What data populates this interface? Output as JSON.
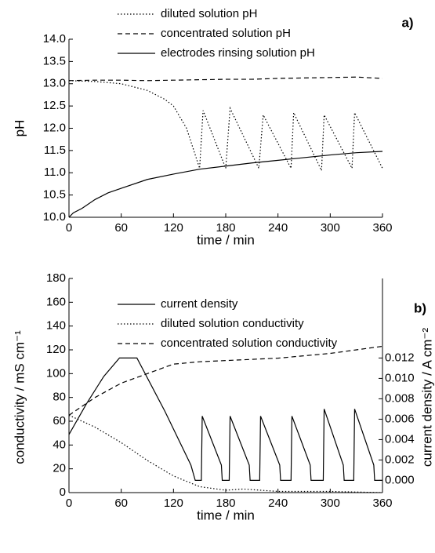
{
  "chart_data": [
    {
      "type": "line",
      "panel_label": "a)",
      "xlabel": "time / min",
      "ylabel": "pH",
      "xlim": [
        0,
        360
      ],
      "xticks": [
        0,
        60,
        120,
        180,
        240,
        300,
        360
      ],
      "ylim": [
        10.0,
        14.0
      ],
      "yticks": [
        {
          "value": 10.0,
          "label": "10.0"
        },
        10.5,
        {
          "value": 11.0,
          "label": "11.0"
        },
        11.5,
        {
          "value": 12.0,
          "label": "12.0"
        },
        12.5,
        {
          "value": 13.0,
          "label": "13.0"
        },
        13.5,
        {
          "value": 14.0,
          "label": "14.0"
        }
      ],
      "series": [
        {
          "name": "diluted solution pH",
          "color": "#000000",
          "style": "dotted",
          "x": [
            0,
            30,
            60,
            90,
            110,
            120,
            135,
            150,
            154,
            180,
            185,
            218,
            223,
            255,
            258,
            290,
            293,
            325,
            328,
            360
          ],
          "values": [
            13.07,
            13.05,
            13.0,
            12.85,
            12.65,
            12.5,
            12.0,
            11.1,
            12.4,
            11.1,
            12.45,
            11.1,
            12.3,
            11.1,
            12.35,
            11.05,
            12.3,
            11.1,
            12.35,
            11.1
          ]
        },
        {
          "name": "concentrated solution pH",
          "color": "#000000",
          "style": "dashed",
          "x": [
            0,
            30,
            60,
            90,
            120,
            150,
            180,
            210,
            240,
            270,
            300,
            330,
            360
          ],
          "values": [
            13.07,
            13.08,
            13.08,
            13.07,
            13.08,
            13.09,
            13.1,
            13.1,
            13.12,
            13.13,
            13.14,
            13.15,
            13.12
          ]
        },
        {
          "name": "electrodes rinsing solution pH",
          "color": "#000000",
          "style": "solid",
          "x": [
            0,
            5,
            15,
            30,
            45,
            60,
            90,
            120,
            150,
            180,
            210,
            240,
            270,
            300,
            330,
            360
          ],
          "values": [
            10.0,
            10.1,
            10.2,
            10.4,
            10.55,
            10.65,
            10.85,
            10.97,
            11.08,
            11.15,
            11.22,
            11.28,
            11.34,
            11.4,
            11.45,
            11.48
          ]
        }
      ]
    },
    {
      "type": "line",
      "panel_label": "b)",
      "xlabel": "time / min",
      "ylabel": "conductivity / mS cm⁻¹",
      "y2label": "current density / A cm⁻²",
      "xlim": [
        0,
        360
      ],
      "xticks": [
        0,
        60,
        120,
        180,
        240,
        300,
        360
      ],
      "ylim": [
        0,
        180
      ],
      "yticks": [
        0,
        20,
        40,
        60,
        80,
        100,
        120,
        140,
        160,
        180
      ],
      "y2lim": [
        -0.0012,
        0.0198
      ],
      "y2ticks": [
        {
          "value": 0.0,
          "label": "0.000"
        },
        0.002,
        0.004,
        0.006,
        0.008,
        {
          "value": 0.01,
          "label": "0.010"
        },
        0.012
      ],
      "series": [
        {
          "name": "current density",
          "color": "#000000",
          "style": "solid",
          "axis": "y2",
          "x": [
            0,
            20,
            40,
            58,
            78,
            110,
            140,
            145,
            152,
            153,
            175,
            176,
            184,
            185,
            207,
            208,
            219,
            220,
            242,
            243,
            255,
            256,
            277,
            278,
            292,
            293,
            315,
            316,
            327,
            328,
            350,
            351,
            360
          ],
          "values": [
            0.0045,
            0.0075,
            0.0102,
            0.012,
            0.012,
            0.0068,
            0.0015,
            0.0,
            0.0,
            0.0063,
            0.0015,
            0.0,
            0.0,
            0.0063,
            0.0015,
            0.0,
            0.0,
            0.0063,
            0.0015,
            0.0,
            0.0,
            0.0063,
            0.0015,
            0.0,
            0.0,
            0.007,
            0.0015,
            0.0,
            0.0,
            0.007,
            0.0015,
            0.0,
            0.0
          ]
        },
        {
          "name": "diluted solution conductivity",
          "color": "#000000",
          "style": "dotted",
          "x": [
            0,
            30,
            60,
            90,
            120,
            150,
            160,
            180,
            200,
            240,
            300,
            360
          ],
          "values": [
            65,
            55,
            42,
            27,
            14,
            5,
            4,
            2,
            3,
            1,
            1,
            0
          ]
        },
        {
          "name": "concentrated solution conductivity",
          "color": "#000000",
          "style": "dashed",
          "x": [
            0,
            30,
            60,
            90,
            120,
            150,
            180,
            210,
            240,
            270,
            300,
            330,
            360
          ],
          "values": [
            65,
            80,
            92,
            100,
            108,
            110,
            111,
            112,
            113,
            115,
            117,
            120,
            123
          ]
        }
      ]
    }
  ]
}
